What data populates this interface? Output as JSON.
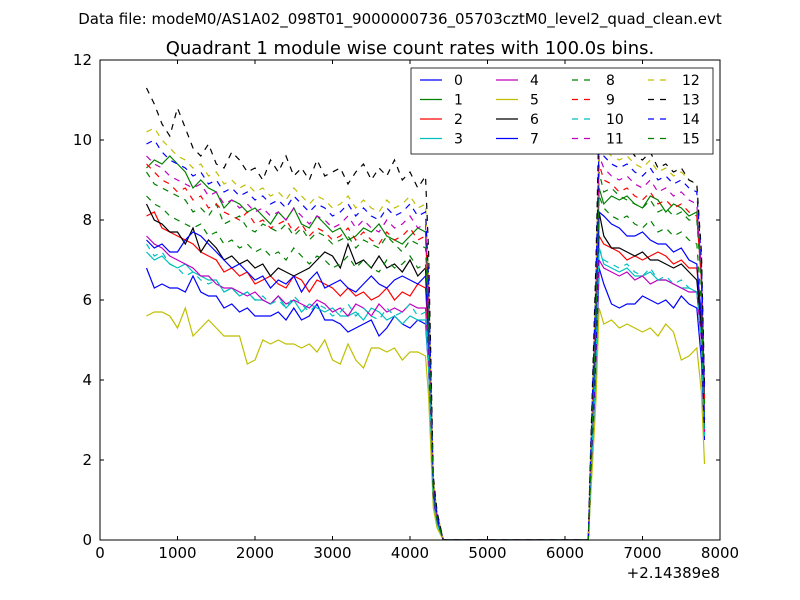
{
  "suptitle": "Data file: modeM0/AS1A02_098T01_9000000736_05703cztM0_level2_quad_clean.evt",
  "chart_data": {
    "type": "line",
    "title": "Quadrant 1 module wise count rates with 100.0s bins.",
    "xlabel": "",
    "ylabel": "",
    "xlim": [
      0,
      8000
    ],
    "ylim": [
      0,
      12
    ],
    "x_offset_label": "+2.14389e8",
    "xticks": [
      0,
      1000,
      2000,
      3000,
      4000,
      5000,
      6000,
      7000,
      8000
    ],
    "yticks": [
      0,
      2,
      4,
      6,
      8,
      10,
      12
    ],
    "legend_position": "top-right",
    "x": [
      600,
      700,
      800,
      900,
      1000,
      1100,
      1200,
      1300,
      1400,
      1500,
      1600,
      1700,
      1800,
      1900,
      2000,
      2100,
      2200,
      2300,
      2400,
      2500,
      2600,
      2700,
      2800,
      2900,
      3000,
      3100,
      3200,
      3300,
      3400,
      3500,
      3600,
      3700,
      3800,
      3900,
      4000,
      4100,
      4200,
      4240,
      4300,
      4350,
      4430,
      6300,
      6320,
      6400,
      6440,
      6500,
      6600,
      6700,
      6800,
      6900,
      7000,
      7100,
      7200,
      7300,
      7400,
      7500,
      7600,
      7700,
      7760,
      7800
    ],
    "series": [
      {
        "name": "0",
        "color": "#0000ff",
        "dash": "solid",
        "values": [
          6.8,
          6.3,
          6.4,
          6.3,
          6.3,
          6.2,
          6.6,
          6.2,
          6.1,
          6.1,
          5.8,
          5.9,
          5.7,
          5.8,
          5.6,
          5.6,
          5.6,
          5.7,
          5.5,
          5.8,
          5.5,
          5.6,
          5.9,
          5.5,
          5.5,
          5.4,
          5.2,
          5.3,
          5.4,
          5.5,
          5.1,
          5.3,
          5.6,
          5.4,
          5.3,
          5.5,
          5.4,
          4.3,
          1.0,
          0.5,
          0.0,
          0.0,
          0.8,
          4.2,
          6.8,
          6.4,
          5.9,
          5.8,
          5.9,
          5.9,
          6.1,
          6.0,
          5.9,
          6.0,
          5.8,
          6.1,
          5.9,
          5.8,
          4.5,
          2.5
        ]
      },
      {
        "name": "1",
        "color": "#008000",
        "dash": "solid",
        "values": [
          9.3,
          9.5,
          9.4,
          9.6,
          9.4,
          9.2,
          8.8,
          9.0,
          8.8,
          8.7,
          8.3,
          8.5,
          8.4,
          8.2,
          8.3,
          8.1,
          7.9,
          8.2,
          8.0,
          8.3,
          7.9,
          7.8,
          8.1,
          7.9,
          7.7,
          7.8,
          7.5,
          7.6,
          7.8,
          7.7,
          7.9,
          7.6,
          7.5,
          7.4,
          7.6,
          7.8,
          7.7,
          6.0,
          1.3,
          0.6,
          0.0,
          0.0,
          1.2,
          5.4,
          8.8,
          8.4,
          8.6,
          8.5,
          8.6,
          8.4,
          8.3,
          8.6,
          8.5,
          8.2,
          8.4,
          8.3,
          8.1,
          8.2,
          6.6,
          3.5
        ]
      },
      {
        "name": "2",
        "color": "#ff0000",
        "dash": "solid",
        "values": [
          8.1,
          8.2,
          7.8,
          7.7,
          7.6,
          7.5,
          7.4,
          7.2,
          7.1,
          7.0,
          6.7,
          6.8,
          6.6,
          6.7,
          6.4,
          6.5,
          6.6,
          6.4,
          6.3,
          6.6,
          6.5,
          6.2,
          6.5,
          6.4,
          6.3,
          6.1,
          6.3,
          6.1,
          6.2,
          6.0,
          6.1,
          6.3,
          6.0,
          6.2,
          6.1,
          6.4,
          6.3,
          5.0,
          1.1,
          0.5,
          0.0,
          0.0,
          1.0,
          4.8,
          7.6,
          7.4,
          7.3,
          7.2,
          7.0,
          7.1,
          7.0,
          7.1,
          7.2,
          7.1,
          6.9,
          7.0,
          6.8,
          6.8,
          5.5,
          3.0
        ]
      },
      {
        "name": "3",
        "color": "#00bfbf",
        "dash": "solid",
        "values": [
          7.2,
          7.0,
          7.1,
          6.9,
          6.8,
          6.9,
          6.7,
          6.6,
          6.5,
          6.5,
          6.2,
          6.3,
          6.1,
          6.2,
          6.0,
          6.0,
          5.9,
          6.1,
          5.8,
          6.0,
          5.7,
          5.9,
          5.8,
          5.7,
          5.8,
          5.6,
          5.6,
          5.7,
          5.5,
          5.8,
          5.7,
          5.5,
          5.6,
          5.4,
          5.6,
          5.5,
          5.5,
          4.3,
          1.0,
          0.4,
          0.0,
          0.0,
          0.9,
          4.4,
          7.3,
          6.9,
          6.8,
          6.7,
          6.8,
          6.6,
          6.6,
          6.7,
          6.5,
          6.5,
          6.4,
          6.3,
          6.3,
          6.2,
          5.0,
          2.6
        ]
      },
      {
        "name": "4",
        "color": "#bf00bf",
        "dash": "solid",
        "values": [
          7.6,
          7.4,
          7.3,
          7.1,
          7.0,
          6.9,
          6.8,
          6.6,
          6.6,
          6.4,
          6.3,
          6.3,
          6.2,
          6.1,
          6.2,
          6.0,
          5.9,
          6.1,
          5.9,
          6.0,
          5.9,
          5.8,
          6.0,
          5.9,
          5.7,
          5.8,
          5.6,
          5.9,
          5.8,
          5.6,
          5.9,
          5.7,
          5.8,
          5.7,
          5.9,
          5.8,
          5.8,
          4.6,
          1.0,
          0.5,
          0.0,
          0.0,
          1.0,
          4.6,
          7.0,
          6.8,
          6.7,
          6.6,
          6.7,
          6.5,
          6.6,
          6.4,
          6.5,
          6.5,
          6.4,
          6.3,
          6.2,
          6.2,
          5.0,
          2.7
        ]
      },
      {
        "name": "5",
        "color": "#bfbf00",
        "dash": "solid",
        "values": [
          5.6,
          5.7,
          5.7,
          5.6,
          5.3,
          5.8,
          5.1,
          5.3,
          5.5,
          5.3,
          5.1,
          5.1,
          5.1,
          4.4,
          4.5,
          5.0,
          4.9,
          5.0,
          4.9,
          4.9,
          4.8,
          4.9,
          4.7,
          5.0,
          4.5,
          4.4,
          4.9,
          4.5,
          4.3,
          4.8,
          4.8,
          4.7,
          4.8,
          4.5,
          4.7,
          4.7,
          4.6,
          3.6,
          0.8,
          0.3,
          0.0,
          0.0,
          0.7,
          3.5,
          5.8,
          5.4,
          5.5,
          5.3,
          5.4,
          5.3,
          5.2,
          5.3,
          5.1,
          5.4,
          5.2,
          4.5,
          4.6,
          4.8,
          3.7,
          1.9
        ]
      },
      {
        "name": "6",
        "color": "#000000",
        "dash": "solid",
        "values": [
          8.4,
          8.0,
          7.9,
          7.7,
          7.7,
          7.4,
          7.8,
          7.2,
          7.5,
          7.3,
          7.0,
          7.1,
          6.9,
          7.0,
          6.8,
          6.9,
          6.6,
          6.8,
          6.7,
          6.6,
          6.7,
          6.8,
          7.0,
          7.2,
          7.1,
          6.8,
          7.4,
          6.9,
          7.0,
          6.8,
          7.1,
          6.8,
          6.9,
          6.7,
          7.0,
          6.6,
          6.8,
          5.4,
          1.2,
          0.5,
          0.0,
          0.0,
          1.1,
          5.0,
          8.2,
          7.6,
          7.3,
          7.3,
          7.2,
          7.1,
          7.2,
          7.0,
          7.0,
          6.9,
          6.8,
          6.9,
          6.7,
          6.5,
          5.3,
          2.8
        ]
      },
      {
        "name": "7",
        "color": "#0000ff",
        "dash": "solid",
        "values": [
          7.5,
          7.3,
          7.4,
          7.2,
          7.2,
          7.5,
          7.7,
          7.6,
          7.4,
          7.2,
          7.0,
          6.8,
          6.9,
          6.7,
          6.5,
          6.6,
          6.3,
          6.5,
          6.4,
          6.6,
          6.2,
          6.5,
          6.7,
          6.3,
          6.4,
          6.5,
          6.3,
          6.2,
          6.4,
          6.6,
          6.4,
          6.3,
          6.5,
          6.6,
          6.5,
          6.4,
          6.6,
          5.2,
          1.1,
          0.5,
          0.0,
          0.0,
          1.1,
          5.0,
          8.2,
          8.1,
          7.9,
          7.8,
          7.6,
          7.6,
          7.7,
          7.5,
          7.4,
          7.4,
          7.2,
          7.3,
          7.0,
          6.9,
          5.6,
          3.0
        ]
      },
      {
        "name": "8",
        "color": "#008000",
        "dash": "dashed",
        "values": [
          9.2,
          8.9,
          8.8,
          8.7,
          8.6,
          8.5,
          8.2,
          8.3,
          8.1,
          8.4,
          7.9,
          8.0,
          8.1,
          7.8,
          7.7,
          7.9,
          7.8,
          7.7,
          7.9,
          7.6,
          7.8,
          7.5,
          7.7,
          7.6,
          7.4,
          7.5,
          7.6,
          7.3,
          7.5,
          7.4,
          7.3,
          7.6,
          7.4,
          7.2,
          7.5,
          7.4,
          7.3,
          5.8,
          1.3,
          0.6,
          0.0,
          0.0,
          1.2,
          5.8,
          9.2,
          8.7,
          8.8,
          8.6,
          8.5,
          8.4,
          8.3,
          8.5,
          8.2,
          8.3,
          8.1,
          8.2,
          8.0,
          8.0,
          6.4,
          3.4
        ]
      },
      {
        "name": "9",
        "color": "#ff0000",
        "dash": "dashed",
        "values": [
          9.4,
          9.2,
          9.0,
          8.9,
          8.7,
          8.8,
          8.5,
          8.6,
          8.3,
          8.4,
          8.2,
          8.1,
          8.0,
          8.2,
          7.9,
          8.0,
          7.8,
          7.9,
          8.0,
          7.7,
          7.9,
          7.6,
          7.8,
          7.7,
          7.5,
          7.6,
          7.8,
          7.5,
          7.7,
          7.5,
          7.4,
          7.7,
          7.5,
          7.6,
          7.8,
          7.5,
          7.6,
          6.0,
          1.3,
          0.6,
          0.0,
          0.0,
          1.3,
          6.0,
          9.4,
          9.0,
          8.9,
          8.7,
          8.8,
          8.6,
          8.5,
          8.7,
          8.4,
          8.5,
          8.3,
          8.4,
          8.2,
          8.1,
          6.5,
          3.5
        ]
      },
      {
        "name": "10",
        "color": "#00bfbf",
        "dash": "dashed",
        "values": [
          7.4,
          7.1,
          7.2,
          6.9,
          6.8,
          6.6,
          6.7,
          6.5,
          6.4,
          6.5,
          6.2,
          6.3,
          6.1,
          6.2,
          6.0,
          6.1,
          5.9,
          6.0,
          5.8,
          6.1,
          5.9,
          5.7,
          5.9,
          5.8,
          5.6,
          5.7,
          5.9,
          5.6,
          5.8,
          5.6,
          5.5,
          5.8,
          5.6,
          5.7,
          5.9,
          5.6,
          5.7,
          4.5,
          1.0,
          0.4,
          0.0,
          0.0,
          0.9,
          4.5,
          7.3,
          7.0,
          6.9,
          6.8,
          6.9,
          6.7,
          6.6,
          6.8,
          6.5,
          6.6,
          6.4,
          6.5,
          6.3,
          6.2,
          5.0,
          2.6
        ]
      },
      {
        "name": "11",
        "color": "#bf00bf",
        "dash": "dashed",
        "values": [
          9.6,
          9.4,
          9.3,
          9.1,
          9.0,
          8.9,
          8.8,
          8.9,
          8.6,
          8.7,
          8.4,
          8.5,
          8.3,
          8.4,
          8.2,
          8.3,
          8.1,
          8.2,
          8.0,
          8.3,
          8.1,
          7.9,
          8.1,
          8.0,
          7.8,
          7.9,
          8.1,
          7.8,
          8.0,
          7.8,
          7.7,
          8.0,
          7.8,
          7.9,
          8.1,
          7.8,
          7.9,
          6.2,
          1.4,
          0.6,
          0.0,
          0.0,
          1.3,
          6.2,
          9.6,
          9.3,
          9.1,
          9.0,
          9.1,
          8.9,
          8.8,
          9.0,
          8.7,
          8.8,
          8.6,
          8.7,
          8.5,
          8.4,
          6.7,
          3.6
        ]
      },
      {
        "name": "12",
        "color": "#bfbf00",
        "dash": "dashed",
        "values": [
          10.2,
          10.3,
          10.0,
          9.8,
          9.6,
          9.5,
          9.3,
          9.4,
          9.1,
          9.2,
          8.9,
          9.0,
          8.8,
          8.9,
          8.7,
          8.8,
          8.6,
          8.7,
          8.5,
          8.8,
          8.6,
          8.4,
          8.6,
          8.5,
          8.3,
          8.4,
          8.6,
          8.3,
          8.5,
          8.3,
          8.2,
          8.5,
          8.3,
          8.4,
          8.6,
          8.3,
          8.4,
          6.6,
          1.5,
          0.7,
          0.0,
          0.0,
          1.4,
          6.6,
          10.1,
          9.8,
          9.6,
          9.5,
          9.6,
          9.4,
          9.3,
          9.5,
          9.2,
          9.3,
          9.1,
          9.2,
          9.0,
          8.9,
          7.1,
          3.8
        ]
      },
      {
        "name": "13",
        "color": "#000000",
        "dash": "dashed",
        "values": [
          11.3,
          10.9,
          10.4,
          10.1,
          10.8,
          10.3,
          9.8,
          9.6,
          9.9,
          9.4,
          9.3,
          9.7,
          9.5,
          9.2,
          9.3,
          9.0,
          9.5,
          9.2,
          9.6,
          9.1,
          9.3,
          9.0,
          9.5,
          9.1,
          9.2,
          9.3,
          8.9,
          9.2,
          9.4,
          9.0,
          9.3,
          9.1,
          9.5,
          9.0,
          9.2,
          8.8,
          9.1,
          7.2,
          1.6,
          0.7,
          0.0,
          0.0,
          1.5,
          7.0,
          10.7,
          10.2,
          10.0,
          9.8,
          9.9,
          9.6,
          9.5,
          9.7,
          9.3,
          9.4,
          9.2,
          9.3,
          9.0,
          8.9,
          7.2,
          3.9
        ]
      },
      {
        "name": "14",
        "color": "#0000ff",
        "dash": "dashed",
        "values": [
          9.9,
          10.0,
          9.7,
          9.5,
          9.4,
          9.3,
          9.1,
          9.2,
          8.9,
          9.0,
          8.7,
          8.8,
          8.6,
          8.7,
          8.5,
          8.6,
          8.4,
          8.5,
          8.3,
          8.6,
          8.4,
          8.2,
          8.4,
          8.3,
          8.1,
          8.2,
          8.4,
          8.1,
          8.3,
          8.1,
          8.0,
          8.3,
          8.1,
          8.2,
          8.4,
          8.1,
          8.2,
          6.5,
          1.4,
          0.6,
          0.0,
          0.0,
          1.4,
          6.5,
          9.9,
          9.6,
          9.4,
          9.3,
          9.4,
          9.2,
          9.1,
          9.3,
          9.0,
          9.1,
          8.9,
          9.0,
          8.8,
          8.7,
          7.0,
          3.7
        ]
      },
      {
        "name": "15",
        "color": "#008000",
        "dash": "dashed",
        "values": [
          8.6,
          8.4,
          8.3,
          8.1,
          8.0,
          7.9,
          7.8,
          7.9,
          7.6,
          7.7,
          7.4,
          7.5,
          7.3,
          7.4,
          7.2,
          7.3,
          7.1,
          7.2,
          7.0,
          7.3,
          7.1,
          6.9,
          7.1,
          7.0,
          6.8,
          6.9,
          7.1,
          6.8,
          7.0,
          6.8,
          6.7,
          7.0,
          6.8,
          6.9,
          7.1,
          6.8,
          6.9,
          5.5,
          1.2,
          0.5,
          0.0,
          0.0,
          1.1,
          5.5,
          8.6,
          8.3,
          8.1,
          8.0,
          8.1,
          7.9,
          7.8,
          8.0,
          7.7,
          7.8,
          7.6,
          7.7,
          7.5,
          7.4,
          5.9,
          3.2
        ]
      }
    ]
  }
}
